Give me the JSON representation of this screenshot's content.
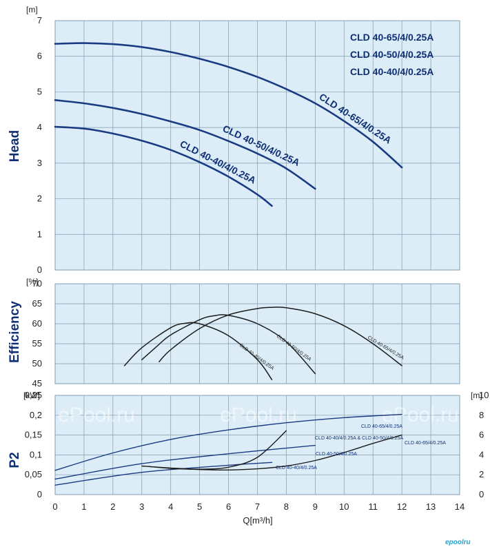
{
  "chart_data": [
    {
      "type": "line",
      "name": "head",
      "ylabel": "Head",
      "yunit": "[m]",
      "ylim": [
        0,
        7
      ],
      "yticks": [
        "0",
        "1",
        "2",
        "3",
        "4",
        "5",
        "6",
        "7"
      ],
      "xlim": [
        0,
        14
      ],
      "grid": true,
      "legend": [
        "CLD 40-65/4/0.25A",
        "CLD 40-50/4/0.25A",
        "CLD 40-40/4/0.25A"
      ],
      "legend_position": "top-right",
      "series": [
        {
          "name": "CLD 40-65/4/0.25A",
          "x": [
            0,
            1,
            2,
            3,
            4,
            5,
            6,
            7,
            8,
            9,
            10,
            11,
            12
          ],
          "y": [
            6.35,
            6.37,
            6.34,
            6.26,
            6.12,
            5.93,
            5.7,
            5.42,
            5.08,
            4.68,
            4.18,
            3.6,
            2.88
          ]
        },
        {
          "name": "CLD 40-50/4/0.25A",
          "x": [
            0,
            1,
            2,
            3,
            4,
            5,
            6,
            7,
            8,
            9
          ],
          "y": [
            4.77,
            4.68,
            4.55,
            4.38,
            4.17,
            3.93,
            3.62,
            3.27,
            2.85,
            2.28
          ]
        },
        {
          "name": "CLD 40-40/4/0.25A",
          "x": [
            0,
            1,
            2,
            3,
            4,
            5,
            6,
            7,
            7.5
          ],
          "y": [
            4.02,
            3.97,
            3.83,
            3.63,
            3.37,
            3.03,
            2.62,
            2.12,
            1.8
          ]
        }
      ]
    },
    {
      "type": "line",
      "name": "efficiency",
      "ylabel": "Efficiency",
      "yunit": "[%]",
      "ylim": [
        45,
        70
      ],
      "yticks": [
        "45",
        "50",
        "55",
        "60",
        "65",
        "70"
      ],
      "xlim": [
        0,
        14
      ],
      "grid": true,
      "series": [
        {
          "name": "CLD 40-65/4/0.25A",
          "x": [
            3.6,
            4,
            5,
            6,
            7,
            7.5,
            8,
            9,
            10,
            11,
            12
          ],
          "y": [
            50.5,
            53.5,
            58.8,
            62.2,
            63.8,
            64.1,
            64.0,
            62.5,
            59.5,
            55.0,
            49.5
          ]
        },
        {
          "name": "CLD 40-50/4/0.25A",
          "x": [
            3,
            3.5,
            4,
            5,
            5.5,
            6,
            7,
            8,
            9
          ],
          "y": [
            51.0,
            54.2,
            57.2,
            61.0,
            62.0,
            62.1,
            60.0,
            55.5,
            47.5
          ]
        },
        {
          "name": "CLD 40-40/4/0.25A",
          "x": [
            2.4,
            3,
            4,
            4.5,
            5,
            6,
            7,
            7.5
          ],
          "y": [
            49.5,
            54.0,
            59.0,
            60.1,
            60.0,
            57.0,
            51.0,
            46.0
          ]
        }
      ]
    },
    {
      "type": "line",
      "name": "p2",
      "ylabel": "P2",
      "yunit": "[kW]",
      "yunit_right": "[m]",
      "ylim": [
        0,
        0.25
      ],
      "yticks": [
        "0",
        "0,05",
        "0,1",
        "0,15",
        "0,2",
        "0,25"
      ],
      "yticks_right": [
        "0",
        "2",
        "4",
        "6",
        "8",
        "10"
      ],
      "xlim": [
        0,
        14
      ],
      "xticks": [
        "0",
        "1",
        "2",
        "3",
        "4",
        "5",
        "6",
        "7",
        "8",
        "9",
        "10",
        "11",
        "12",
        "13",
        "14"
      ],
      "xlabel": "Q[m³/h]",
      "grid": true,
      "series": [
        {
          "name": "CLD 40-65/4/0.25A",
          "x": [
            0,
            2,
            4,
            6,
            8,
            10,
            12
          ],
          "y": [
            0.061,
            0.105,
            0.139,
            0.163,
            0.181,
            0.194,
            0.202
          ]
        },
        {
          "name": "CLD 40-50/4/0.25A",
          "x": [
            0,
            3,
            6,
            9
          ],
          "y": [
            0.039,
            0.078,
            0.103,
            0.124
          ]
        },
        {
          "name": "CLD 40-40/4/0.25A",
          "x": [
            0,
            3,
            6,
            7.5
          ],
          "y": [
            0.024,
            0.056,
            0.074,
            0.081
          ]
        },
        {
          "name": "CLD 40-40/4/0.25A & CLD 40-50/4/0.25A",
          "x": [
            3,
            4,
            5,
            6,
            7,
            8
          ],
          "y": [
            0.072,
            0.067,
            0.064,
            0.069,
            0.094,
            0.161
          ]
        },
        {
          "name": "CLD 40-65/4/0.25A",
          "x": [
            3.2,
            4,
            5,
            6,
            7,
            8,
            9,
            10,
            11,
            12
          ],
          "y": [
            0.071,
            0.066,
            0.063,
            0.062,
            0.065,
            0.072,
            0.086,
            0.106,
            0.129,
            0.15
          ]
        }
      ]
    }
  ],
  "curve_labels": {
    "head_65": "CLD 40-65/4/0.25A",
    "head_50": "CLD 40-50/4/0.25A",
    "head_40": "CLD 40-40/4/0.25A",
    "eff_40": "CLD 40-40/4/0.25A",
    "eff_50": "CLD 40-50/4/0.25A",
    "eff_65": "CLD 40-65/4/0.25A",
    "p2_65": "CLD 40-65/4/0.25A",
    "p2_shared": "CLD 40-40/4/0.25A & CLD 40-50/4/0.25A",
    "p2_50": "CLD 40-50/4/0.25A",
    "p2_40": "CLD 40-40/4/0.25A",
    "p2_65b": "CLD 40-65/4/0.25A"
  },
  "watermarks": [
    "ePool.ru",
    "ePool.ru",
    "ePool.ru"
  ],
  "logo": "epoolru",
  "colors": {
    "plot_bg": "#dcedf8",
    "grid": "#7f9bb0",
    "blue_curve": "#1a3a82",
    "black_curve": "#1b1b1b",
    "label": "#0f2f74"
  }
}
